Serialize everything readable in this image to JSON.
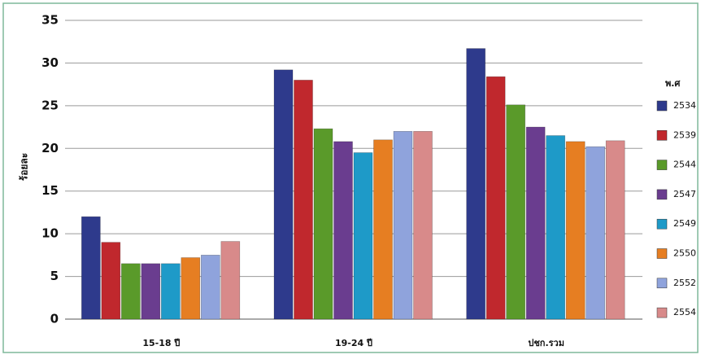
{
  "chart_data": {
    "type": "bar",
    "y_label": "ร้อยละ",
    "legend_title": "พ.ศ",
    "categories": [
      "15-18 ปี",
      "19-24 ปี",
      "ปชก.รวม"
    ],
    "series": [
      {
        "name": "2534",
        "color": "#2e3a8c",
        "values": [
          12,
          29.2,
          31.7
        ]
      },
      {
        "name": "2539",
        "color": "#c0282d",
        "values": [
          9,
          28,
          28.4
        ]
      },
      {
        "name": "2544",
        "color": "#5a9a2a",
        "values": [
          6.5,
          22.3,
          25.1
        ]
      },
      {
        "name": "2547",
        "color": "#6a3d8f",
        "values": [
          6.5,
          20.8,
          22.5
        ]
      },
      {
        "name": "2549",
        "color": "#1e9ac8",
        "values": [
          6.5,
          19.5,
          21.5
        ]
      },
      {
        "name": "2550",
        "color": "#e67e22",
        "values": [
          7.2,
          21,
          20.8
        ]
      },
      {
        "name": "2552",
        "color": "#8fa3dc",
        "values": [
          7.5,
          22,
          20.2
        ]
      },
      {
        "name": "2554",
        "color": "#d88a8a",
        "values": [
          9.1,
          22,
          20.9
        ]
      }
    ],
    "ylim": [
      0,
      35
    ],
    "yticks": [
      0,
      5,
      10,
      15,
      20,
      25,
      30,
      35
    ],
    "grid": true
  }
}
